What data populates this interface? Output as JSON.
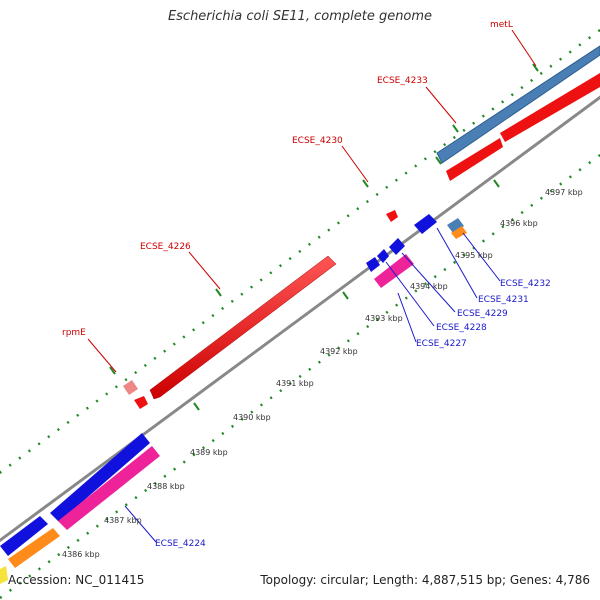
{
  "header": {
    "title": "Escherichia coli SE11, complete genome"
  },
  "footer": {
    "accession": "Accession: NC_011415",
    "stats": "Topology: circular; Length: 4,887,515 bp; Genes: 4,786"
  },
  "scale_labels": [
    "4386 kbp",
    "4387 kbp",
    "4388 kbp",
    "4389 kbp",
    "4390 kbp",
    "4391 kbp",
    "4392 kbp",
    "4393 kbp",
    "4394 kbp",
    "4395 kbp",
    "4396 kbp",
    "4397 kbp"
  ],
  "gene_labels_top": [
    "metL",
    "ECSE_4233",
    "ECSE_4230",
    "ECSE_4226",
    "rpmE"
  ],
  "gene_labels_bottom": [
    "ECSE_4232",
    "ECSE_4231",
    "ECSE_4229",
    "ECSE_4228",
    "ECSE_4227",
    "ECSE_4224"
  ],
  "colors": {
    "forward_cds": "#ee1111",
    "forward_pseudo": "#ee8888",
    "forward_other": "#4a7fb5",
    "reverse_cds": "#1111dd",
    "reverse_rna": "#ee2299",
    "reverse_other": "#ff8c1a",
    "backbone": "#888888",
    "ticks": "#228822"
  }
}
